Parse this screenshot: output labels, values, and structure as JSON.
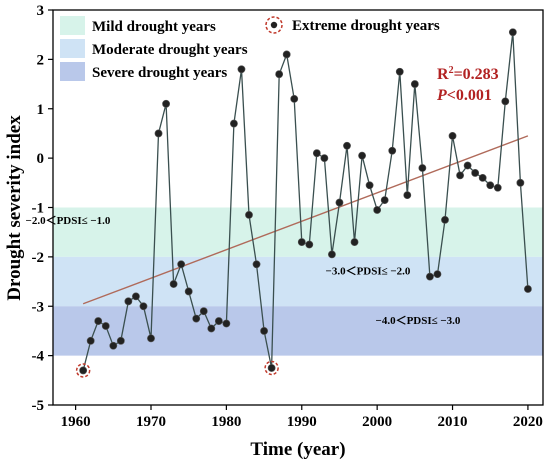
{
  "chart_data": {
    "type": "line",
    "xlabel": "Time (year)",
    "ylabel": "Drought severity index",
    "xlim": [
      1957,
      2022
    ],
    "ylim": [
      -5,
      3
    ],
    "x_ticks": [
      1960,
      1970,
      1980,
      1990,
      2000,
      2010,
      2020
    ],
    "y_ticks": [
      -5,
      -4,
      -3,
      -2,
      -1,
      0,
      1,
      2,
      3
    ],
    "grid": false,
    "legend_placement": "top-left",
    "series": [
      {
        "color": "#3a4f4f",
        "x": [
          1961,
          1962,
          1963,
          1964,
          1965,
          1966,
          1967,
          1968,
          1969,
          1970,
          1971,
          1972,
          1973,
          1974,
          1975,
          1976,
          1977,
          1978,
          1979,
          1980,
          1981,
          1982,
          1983,
          1984,
          1985,
          1986,
          1987,
          1988,
          1989,
          1990,
          1991,
          1992,
          1993,
          1994,
          1995,
          1996,
          1997,
          1998,
          1999,
          2000,
          2001,
          2002,
          2003,
          2004,
          2005,
          2006,
          2007,
          2008,
          2009,
          2010,
          2011,
          2012,
          2013,
          2014,
          2015,
          2016,
          2017,
          2018,
          2019,
          2020
        ],
        "y": [
          -4.3,
          -3.7,
          -3.3,
          -3.4,
          -3.8,
          -3.7,
          -2.9,
          -2.8,
          -3.0,
          -3.65,
          0.5,
          1.1,
          -2.55,
          -2.15,
          -2.7,
          -3.25,
          -3.1,
          -3.45,
          -3.3,
          -3.35,
          0.7,
          1.8,
          -1.15,
          -2.15,
          -3.5,
          -4.25,
          1.7,
          2.1,
          1.2,
          -1.7,
          -1.75,
          0.1,
          0.0,
          -1.95,
          -0.9,
          0.25,
          -1.7,
          0.05,
          -0.55,
          -1.05,
          -0.85,
          0.15,
          1.75,
          -0.75,
          1.5,
          -0.2,
          -2.4,
          -2.35,
          -1.25,
          0.45,
          -0.35,
          -0.15,
          -0.3,
          -0.4,
          -0.55,
          -0.6,
          1.15,
          2.55,
          -0.5,
          -2.65
        ]
      }
    ],
    "trend": {
      "x": [
        1961,
        2020
      ],
      "y": [
        -2.95,
        0.45
      ],
      "color": "#b06a5a",
      "r2_label": "R",
      "r2_sup": "2",
      "r2_value": "=0.283",
      "p_label": "P",
      "p_value": "<0.001"
    },
    "extreme_points": [
      {
        "x": 1961,
        "y": -4.3
      },
      {
        "x": 1986,
        "y": -4.25
      }
    ],
    "bands": [
      {
        "label": "Mild drought years",
        "ymin": -2,
        "ymax": -1,
        "color": "#d7f3ea",
        "annotation": "−2.0＜PDSI≤ −1.0"
      },
      {
        "label": "Moderate drought years",
        "ymin": -3,
        "ymax": -2,
        "color": "#cfe3f5",
        "annotation": "−3.0＜PDSI≤ −2.0"
      },
      {
        "label": "Severe drought years",
        "ymin": -4,
        "ymax": -3,
        "color": "#b9c8ea",
        "annotation": "−4.0＜PDSI≤ −3.0"
      }
    ],
    "extreme_label": "Extreme drought years",
    "extreme_color": "#c0392b"
  }
}
